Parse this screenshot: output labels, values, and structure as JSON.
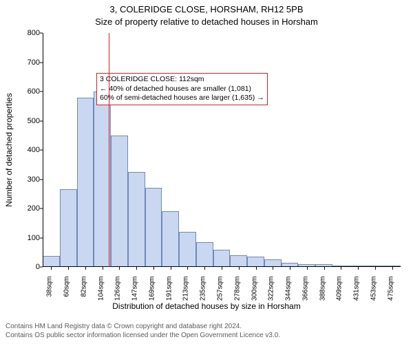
{
  "title": "3, COLERIDGE CLOSE, HORSHAM, RH12 5PB",
  "subtitle": "Size of property relative to detached houses in Horsham",
  "ylabel": "Number of detached properties",
  "xlabel": "Distribution of detached houses by size in Horsham",
  "attribution_line1": "Contains HM Land Registry data © Crown copyright and database right 2024.",
  "attribution_line2": "Contains OS public sector information licensed under the Open Government Licence v3.0.",
  "chart": {
    "type": "histogram",
    "bar_fill": "#c9d7f0",
    "bar_border": "#6e89b8",
    "bar_border_width": 1,
    "background_color": "#ffffff",
    "axis_color": "#000000",
    "y": {
      "min": 0,
      "max": 800,
      "tick_step": 100,
      "ticks": [
        0,
        100,
        200,
        300,
        400,
        500,
        600,
        700,
        800
      ],
      "label_fontsize": 11
    },
    "x": {
      "label_fontsize": 10,
      "categories": [
        "38sqm",
        "60sqm",
        "82sqm",
        "104sqm",
        "126sqm",
        "147sqm",
        "169sqm",
        "191sqm",
        "213sqm",
        "235sqm",
        "257sqm",
        "278sqm",
        "300sqm",
        "322sqm",
        "344sqm",
        "366sqm",
        "388sqm",
        "409sqm",
        "431sqm",
        "453sqm",
        "475sqm"
      ]
    },
    "values": [
      38,
      265,
      580,
      600,
      450,
      325,
      270,
      190,
      120,
      85,
      60,
      40,
      35,
      25,
      15,
      10,
      10,
      5,
      5,
      5,
      3
    ],
    "marker": {
      "value_sqm": 112,
      "color": "#d81e1e",
      "line_width": 1
    },
    "annotation": {
      "border_color": "#d81e1e",
      "border_width": 1,
      "bg": "#ffffff",
      "line1": "3 COLERIDGE CLOSE: 112sqm",
      "line2": "← 40% of detached houses are smaller (1,081)",
      "line3": "60% of semi-detached houses are larger (1,635) →"
    }
  }
}
